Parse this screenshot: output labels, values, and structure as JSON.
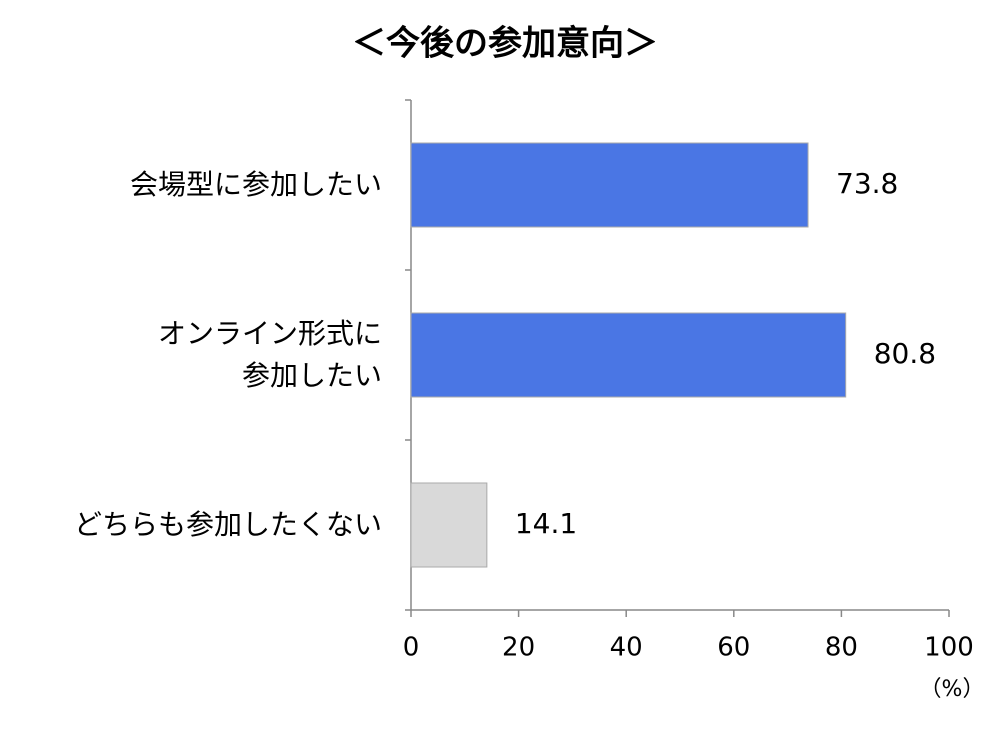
{
  "chart_data": {
    "type": "bar",
    "orientation": "horizontal",
    "title": "＜今後の参加意向＞",
    "categories": [
      "会場型に参加したい",
      "オンライン形式に\n参加したい",
      "どちらも参加したくない"
    ],
    "values": [
      73.8,
      80.8,
      14.1
    ],
    "colors": [
      "#4a76e4",
      "#4a76e4",
      "#d9d9d9"
    ],
    "xlim": [
      0,
      100
    ],
    "xticks": [
      0,
      20,
      40,
      60,
      80,
      100
    ],
    "x_axis_label": "（%）"
  }
}
